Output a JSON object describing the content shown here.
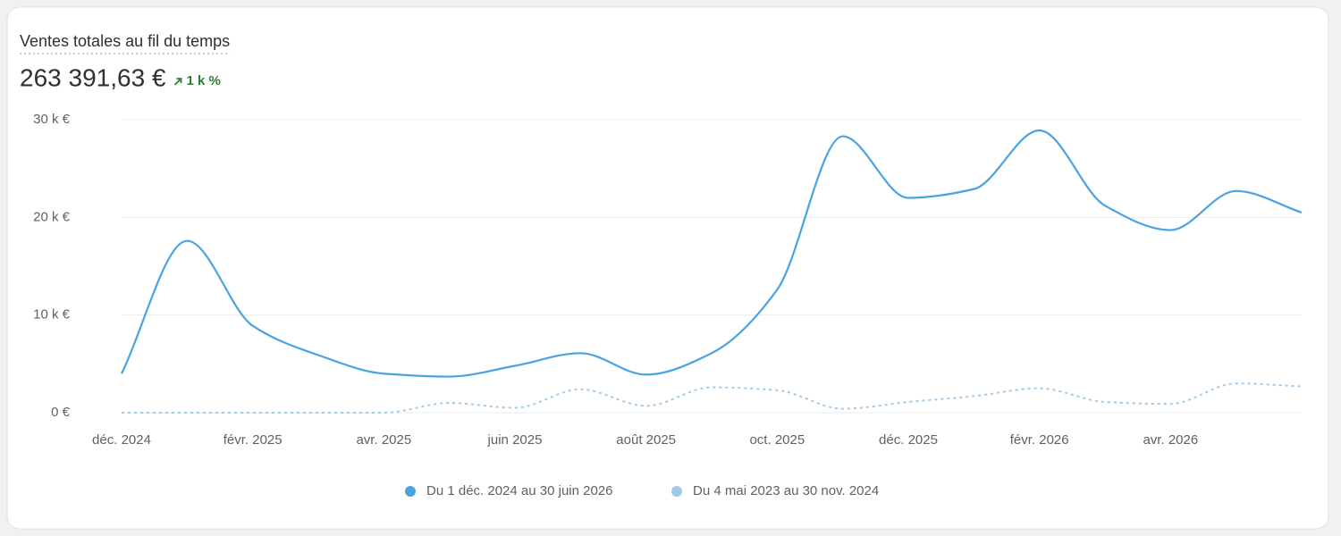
{
  "header": {
    "title": "Ventes totales au fil du temps",
    "total": "263 391,63 €",
    "change": "1 k %",
    "change_color": "#2e7d32"
  },
  "chart_data": {
    "type": "line",
    "categories": [
      "déc. 2024",
      null,
      "févr. 2025",
      null,
      "avr. 2025",
      null,
      "juin 2025",
      null,
      "août 2025",
      null,
      "oct. 2025",
      null,
      "déc. 2025",
      null,
      "févr. 2026",
      null,
      "avr. 2026",
      null,
      null
    ],
    "series": [
      {
        "name": "Du 1 déc. 2024 au 30 juin 2026",
        "color": "#4aa3e0",
        "line_style": "solid",
        "values": [
          4.0,
          17.6,
          8.9,
          5.9,
          4.0,
          3.7,
          4.8,
          6.1,
          3.9,
          6.1,
          12.6,
          28.3,
          22.0,
          22.9,
          28.9,
          21.2,
          18.7,
          22.7,
          20.5
        ]
      },
      {
        "name": "Du 4 mai 2023 au 30 nov. 2024",
        "color": "#9fcbe8",
        "line_style": "dotted",
        "values": [
          0,
          0,
          0,
          0,
          0,
          1.0,
          0.5,
          2.4,
          0.7,
          2.6,
          2.3,
          0.4,
          1.1,
          1.7,
          2.5,
          1.1,
          0.9,
          3.0,
          2.7
        ]
      }
    ],
    "ylim": [
      0,
      30
    ],
    "yticks": [
      {
        "value": 0,
        "label": "0 €"
      },
      {
        "value": 10,
        "label": "10 k €"
      },
      {
        "value": 20,
        "label": "20 k €"
      },
      {
        "value": 30,
        "label": "30 k €"
      }
    ],
    "grid": true
  }
}
